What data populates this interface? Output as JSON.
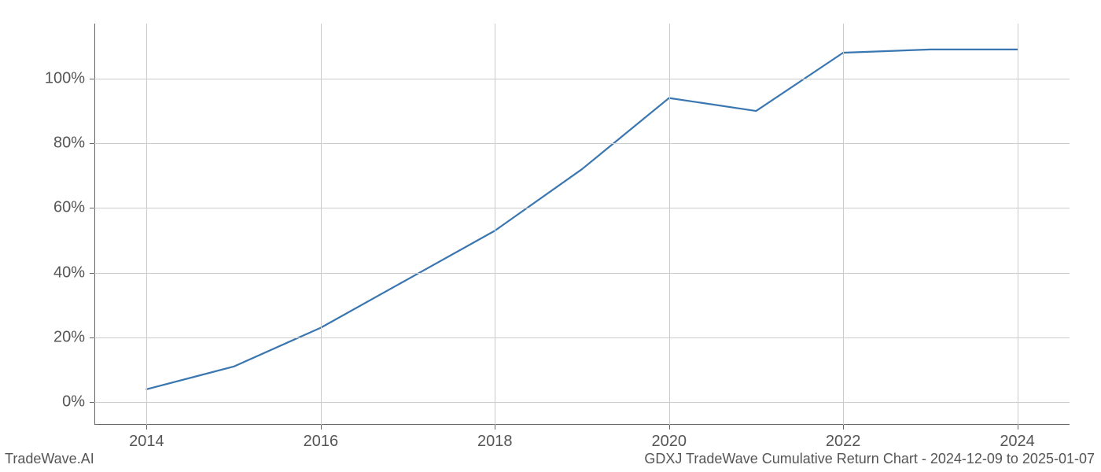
{
  "chart": {
    "type": "line",
    "background_color": "#ffffff",
    "grid_color": "#cccccc",
    "spine_color": "#666666",
    "line_color": "#3a76af",
    "line_width": 2.2,
    "text_color": "#555555",
    "tick_fontsize": 20,
    "xlim": [
      2013.4,
      2024.6
    ],
    "ylim": [
      -7,
      117
    ],
    "xticks": [
      2014,
      2016,
      2018,
      2020,
      2022,
      2024
    ],
    "xtick_labels": [
      "2014",
      "2016",
      "2018",
      "2020",
      "2022",
      "2024"
    ],
    "yticks": [
      0,
      20,
      40,
      60,
      80,
      100
    ],
    "ytick_labels": [
      "0%",
      "20%",
      "40%",
      "60%",
      "80%",
      "100%"
    ],
    "series": {
      "x": [
        2014,
        2015,
        2016,
        2017,
        2018,
        2019,
        2020,
        2021,
        2022,
        2023,
        2024
      ],
      "y": [
        4,
        11,
        23,
        38,
        53,
        72,
        94,
        90,
        108,
        109,
        109
      ]
    }
  },
  "footer": {
    "left": "TradeWave.AI",
    "right": "GDXJ TradeWave Cumulative Return Chart - 2024-12-09 to 2025-01-07"
  }
}
